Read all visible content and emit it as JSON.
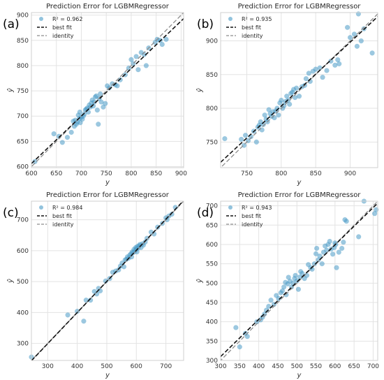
{
  "chart_data": [
    {
      "letter": "(a)",
      "type": "scatter",
      "title": "Prediction Error for LGBMRegressor",
      "xlabel": "y",
      "ylabel": "ŷ",
      "xlim": [
        600,
        905
      ],
      "ylim": [
        598,
        905
      ],
      "xticks": [
        600,
        650,
        700,
        750,
        800,
        850,
        900
      ],
      "yticks": [
        600,
        650,
        700,
        750,
        800,
        850,
        900
      ],
      "legend": [
        "R² = 0.962",
        "best fit",
        "identity"
      ],
      "best_fit": [
        [
          600,
          606
        ],
        [
          905,
          893
        ]
      ],
      "points": [
        [
          607,
          610
        ],
        [
          645,
          665
        ],
        [
          655,
          660
        ],
        [
          662,
          648
        ],
        [
          672,
          658
        ],
        [
          680,
          668
        ],
        [
          684,
          690
        ],
        [
          686,
          680
        ],
        [
          688,
          692
        ],
        [
          690,
          684
        ],
        [
          692,
          688
        ],
        [
          694,
          702
        ],
        [
          696,
          695
        ],
        [
          697,
          708
        ],
        [
          698,
          687
        ],
        [
          700,
          698
        ],
        [
          702,
          694
        ],
        [
          704,
          700
        ],
        [
          706,
          704
        ],
        [
          708,
          712
        ],
        [
          710,
          714
        ],
        [
          712,
          716
        ],
        [
          714,
          708
        ],
        [
          716,
          722
        ],
        [
          718,
          718
        ],
        [
          720,
          726
        ],
        [
          722,
          732
        ],
        [
          724,
          720
        ],
        [
          726,
          728
        ],
        [
          728,
          738
        ],
        [
          730,
          740
        ],
        [
          732,
          712
        ],
        [
          734,
          684
        ],
        [
          736,
          735
        ],
        [
          738,
          744
        ],
        [
          740,
          728
        ],
        [
          744,
          718
        ],
        [
          748,
          725
        ],
        [
          752,
          760
        ],
        [
          756,
          756
        ],
        [
          762,
          764
        ],
        [
          768,
          762
        ],
        [
          772,
          760
        ],
        [
          778,
          772
        ],
        [
          788,
          782
        ],
        [
          795,
          795
        ],
        [
          800,
          812
        ],
        [
          804,
          804
        ],
        [
          810,
          818
        ],
        [
          814,
          792
        ],
        [
          820,
          826
        ],
        [
          826,
          822
        ],
        [
          830,
          800
        ],
        [
          835,
          835
        ],
        [
          848,
          846
        ],
        [
          852,
          852
        ],
        [
          858,
          850
        ],
        [
          862,
          842
        ],
        [
          870,
          852
        ]
      ]
    },
    {
      "letter": "(b)",
      "type": "scatter",
      "title": "Prediction Error for LGBMRegressor",
      "xlabel": "y",
      "ylabel": "ŷ",
      "xlim": [
        712,
        940
      ],
      "ylim": [
        712,
        942
      ],
      "xticks": [
        750,
        800,
        850,
        900
      ],
      "yticks": [
        750,
        800,
        850,
        900
      ],
      "legend": [
        "R² = 0.935",
        "best fit",
        "identity"
      ],
      "best_fit": [
        [
          712,
          720
        ],
        [
          940,
          936
        ]
      ],
      "points": [
        [
          718,
          755
        ],
        [
          742,
          754
        ],
        [
          746,
          745
        ],
        [
          748,
          760
        ],
        [
          752,
          752
        ],
        [
          756,
          758
        ],
        [
          760,
          766
        ],
        [
          764,
          750
        ],
        [
          766,
          772
        ],
        [
          768,
          775
        ],
        [
          770,
          780
        ],
        [
          772,
          768
        ],
        [
          774,
          776
        ],
        [
          776,
          790
        ],
        [
          778,
          784
        ],
        [
          780,
          780
        ],
        [
          782,
          798
        ],
        [
          784,
          792
        ],
        [
          786,
          788
        ],
        [
          788,
          795
        ],
        [
          790,
          786
        ],
        [
          792,
          796
        ],
        [
          794,
          800
        ],
        [
          796,
          790
        ],
        [
          798,
          808
        ],
        [
          800,
          812
        ],
        [
          802,
          800
        ],
        [
          804,
          804
        ],
        [
          806,
          810
        ],
        [
          808,
          818
        ],
        [
          810,
          812
        ],
        [
          812,
          806
        ],
        [
          814,
          822
        ],
        [
          816,
          824
        ],
        [
          818,
          828
        ],
        [
          820,
          816
        ],
        [
          822,
          830
        ],
        [
          826,
          818
        ],
        [
          830,
          832
        ],
        [
          834,
          834
        ],
        [
          836,
          844
        ],
        [
          840,
          852
        ],
        [
          842,
          840
        ],
        [
          846,
          855
        ],
        [
          850,
          858
        ],
        [
          856,
          860
        ],
        [
          860,
          846
        ],
        [
          866,
          856
        ],
        [
          872,
          870
        ],
        [
          878,
          864
        ],
        [
          882,
          872
        ],
        [
          884,
          866
        ],
        [
          896,
          920
        ],
        [
          900,
          905
        ],
        [
          906,
          910
        ],
        [
          910,
          892
        ],
        [
          912,
          940
        ],
        [
          916,
          900
        ],
        [
          920,
          918
        ],
        [
          932,
          882
        ]
      ]
    },
    {
      "letter": "(c)",
      "type": "scatter",
      "title": "Prediction Error for LGBMRegressor",
      "xlabel": "y",
      "ylabel": "ŷ",
      "xlim": [
        245,
        760
      ],
      "ylim": [
        245,
        760
      ],
      "xticks": [
        300,
        400,
        500,
        600,
        700
      ],
      "yticks": [
        300,
        400,
        500,
        600,
        700
      ],
      "legend": [
        "R² = 0.984",
        "best fit",
        "identity"
      ],
      "best_fit": [
        [
          245,
          244
        ],
        [
          760,
          762
        ]
      ],
      "points": [
        [
          245,
          256
        ],
        [
          368,
          392
        ],
        [
          400,
          404
        ],
        [
          422,
          372
        ],
        [
          430,
          440
        ],
        [
          445,
          440
        ],
        [
          458,
          468
        ],
        [
          466,
          460
        ],
        [
          472,
          478
        ],
        [
          478,
          470
        ],
        [
          496,
          502
        ],
        [
          510,
          510
        ],
        [
          520,
          530
        ],
        [
          530,
          534
        ],
        [
          540,
          538
        ],
        [
          546,
          550
        ],
        [
          552,
          560
        ],
        [
          558,
          548
        ],
        [
          562,
          570
        ],
        [
          566,
          572
        ],
        [
          570,
          580
        ],
        [
          574,
          576
        ],
        [
          578,
          586
        ],
        [
          582,
          590
        ],
        [
          584,
          580
        ],
        [
          586,
          596
        ],
        [
          590,
          594
        ],
        [
          592,
          604
        ],
        [
          596,
          600
        ],
        [
          598,
          610
        ],
        [
          600,
          606
        ],
        [
          602,
          596
        ],
        [
          604,
          614
        ],
        [
          606,
          608
        ],
        [
          610,
          616
        ],
        [
          612,
          620
        ],
        [
          616,
          610
        ],
        [
          620,
          622
        ],
        [
          624,
          618
        ],
        [
          630,
          628
        ],
        [
          636,
          640
        ],
        [
          650,
          660
        ],
        [
          660,
          654
        ],
        [
          672,
          676
        ],
        [
          688,
          688
        ],
        [
          700,
          706
        ],
        [
          704,
          700
        ],
        [
          710,
          712
        ],
        [
          720,
          718
        ],
        [
          732,
          740
        ]
      ]
    },
    {
      "letter": "(d)",
      "type": "scatter",
      "title": "Prediction Error for LGBMRegressor",
      "xlabel": "y",
      "ylabel": "ŷ",
      "xlim": [
        300,
        712
      ],
      "ylim": [
        300,
        712
      ],
      "xticks": [
        300,
        350,
        400,
        450,
        500,
        550,
        600,
        650,
        700
      ],
      "yticks": [
        300,
        350,
        400,
        450,
        500,
        550,
        600,
        650,
        700
      ],
      "legend": [
        "R² = 0.943",
        "best fit",
        "identity"
      ],
      "best_fit": [
        [
          300,
          310
        ],
        [
          712,
          707
        ]
      ],
      "points": [
        [
          340,
          385
        ],
        [
          350,
          335
        ],
        [
          365,
          370
        ],
        [
          370,
          362
        ],
        [
          395,
          400
        ],
        [
          405,
          405
        ],
        [
          410,
          412
        ],
        [
          415,
          420
        ],
        [
          420,
          430
        ],
        [
          426,
          440
        ],
        [
          432,
          456
        ],
        [
          440,
          445
        ],
        [
          446,
          468
        ],
        [
          452,
          460
        ],
        [
          458,
          475
        ],
        [
          462,
          480
        ],
        [
          466,
          490
        ],
        [
          470,
          502
        ],
        [
          472,
          470
        ],
        [
          476,
          498
        ],
        [
          478,
          515
        ],
        [
          482,
          505
        ],
        [
          486,
          490
        ],
        [
          490,
          500
        ],
        [
          494,
          512
        ],
        [
          496,
          520
        ],
        [
          500,
          506
        ],
        [
          504,
          484
        ],
        [
          508,
          516
        ],
        [
          510,
          530
        ],
        [
          514,
          525
        ],
        [
          520,
          512
        ],
        [
          526,
          520
        ],
        [
          530,
          548
        ],
        [
          536,
          540
        ],
        [
          540,
          536
        ],
        [
          546,
          550
        ],
        [
          550,
          576
        ],
        [
          552,
          590
        ],
        [
          556,
          560
        ],
        [
          560,
          570
        ],
        [
          566,
          550
        ],
        [
          570,
          580
        ],
        [
          574,
          596
        ],
        [
          578,
          585
        ],
        [
          582,
          600
        ],
        [
          586,
          608
        ],
        [
          590,
          588
        ],
        [
          594,
          575
        ],
        [
          598,
          592
        ],
        [
          600,
          604
        ],
        [
          602,
          600
        ],
        [
          604,
          540
        ],
        [
          610,
          580
        ],
        [
          618,
          590
        ],
        [
          622,
          606
        ],
        [
          626,
          664
        ],
        [
          630,
          660
        ],
        [
          662,
          620
        ],
        [
          676,
          712
        ],
        [
          704,
          680
        ],
        [
          708,
          690
        ]
      ]
    }
  ]
}
